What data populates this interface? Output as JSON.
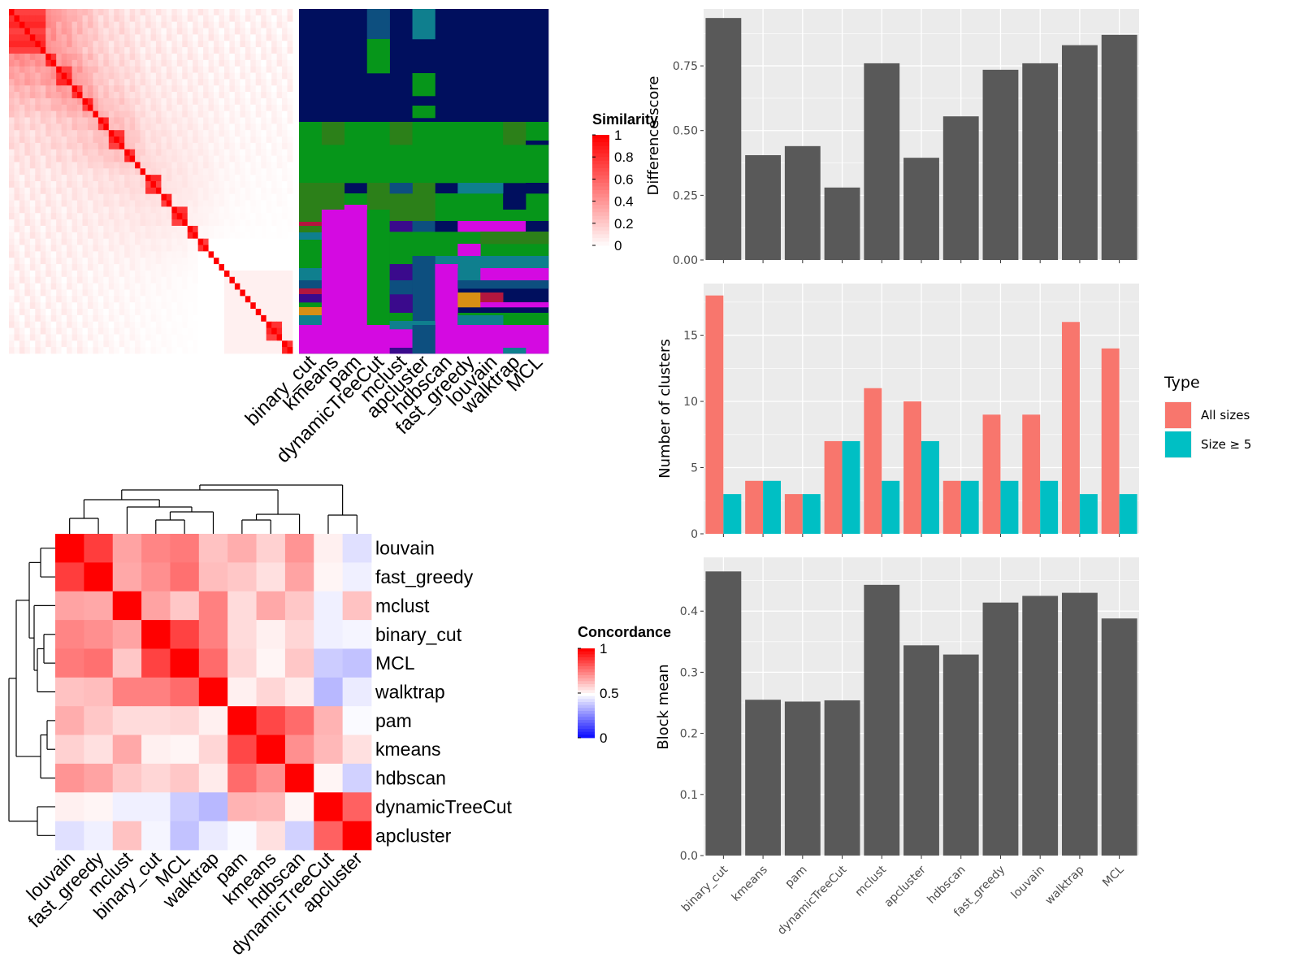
{
  "chart_data": [
    {
      "type": "heatmap",
      "id": "similarity",
      "legend_title": "Similarity",
      "legend_ticks": [
        "1",
        "0.8",
        "0.6",
        "0.4",
        "0.2",
        "0"
      ],
      "colors": {
        "low": "#ffffff",
        "high": "#ff0000"
      },
      "diagonal_blocks": [
        7,
        2,
        3,
        2,
        2,
        1,
        2,
        3,
        2,
        1,
        1,
        3,
        2,
        3,
        2,
        2,
        1,
        1,
        1,
        1,
        1,
        1,
        1,
        1,
        1,
        1,
        1,
        3,
        2
      ]
    },
    {
      "type": "heatmap",
      "id": "cluster-assignment",
      "x_labels": [
        "binary_cut",
        "kmeans",
        "pam",
        "dynamicTreeCut",
        "mclust",
        "apcluster",
        "hdbscan",
        "fast_greedy",
        "louvain",
        "walktrap",
        "MCL"
      ],
      "colors": {
        "navy": "#000f5e",
        "green": "#06961a",
        "darkgreen": "#2c8019",
        "magenta": "#d40ae1",
        "teal": "#0f7f8e",
        "blue": "#0d4f7f",
        "indigo": "#3a0a8c",
        "orange": "#d88f14",
        "crimson": "#b2163e",
        "cyan": "#14948e"
      }
    },
    {
      "type": "heatmap",
      "id": "concordance",
      "legend_title": "Concordance",
      "legend_ticks": [
        "1",
        "0.5",
        "0"
      ],
      "labels": [
        "louvain",
        "fast_greedy",
        "mclust",
        "binary_cut",
        "MCL",
        "walktrap",
        "pam",
        "kmeans",
        "hdbscan",
        "dynamicTreeCut",
        "apcluster"
      ],
      "values": [
        [
          1.0,
          0.88,
          0.68,
          0.74,
          0.76,
          0.62,
          0.66,
          0.59,
          0.71,
          0.53,
          0.44
        ],
        [
          0.88,
          1.0,
          0.67,
          0.72,
          0.78,
          0.63,
          0.61,
          0.56,
          0.68,
          0.52,
          0.47
        ],
        [
          0.68,
          0.67,
          1.0,
          0.68,
          0.61,
          0.75,
          0.57,
          0.67,
          0.61,
          0.47,
          0.62
        ],
        [
          0.74,
          0.72,
          0.68,
          1.0,
          0.87,
          0.75,
          0.57,
          0.53,
          0.58,
          0.47,
          0.48
        ],
        [
          0.76,
          0.78,
          0.61,
          0.87,
          1.0,
          0.79,
          0.58,
          0.52,
          0.61,
          0.4,
          0.38
        ],
        [
          0.62,
          0.63,
          0.75,
          0.75,
          0.79,
          1.0,
          0.53,
          0.58,
          0.54,
          0.36,
          0.46
        ],
        [
          0.66,
          0.61,
          0.57,
          0.57,
          0.58,
          0.53,
          1.0,
          0.86,
          0.79,
          0.65,
          0.49
        ],
        [
          0.59,
          0.56,
          0.67,
          0.53,
          0.52,
          0.58,
          0.86,
          1.0,
          0.72,
          0.64,
          0.56
        ],
        [
          0.71,
          0.68,
          0.61,
          0.58,
          0.61,
          0.54,
          0.79,
          0.72,
          1.0,
          0.52,
          0.41
        ],
        [
          0.53,
          0.52,
          0.47,
          0.47,
          0.4,
          0.36,
          0.65,
          0.64,
          0.52,
          1.0,
          0.81
        ],
        [
          0.44,
          0.47,
          0.62,
          0.48,
          0.38,
          0.46,
          0.49,
          0.56,
          0.41,
          0.81,
          1.0
        ]
      ]
    },
    {
      "type": "bar",
      "id": "difference-score",
      "categories": [
        "binary_cut",
        "kmeans",
        "pam",
        "dynamicTreeCut",
        "mclust",
        "apcluster",
        "hdbscan",
        "fast_greedy",
        "louvain",
        "walktrap",
        "MCL"
      ],
      "values": [
        0.935,
        0.405,
        0.44,
        0.28,
        0.76,
        0.395,
        0.555,
        0.735,
        0.76,
        0.83,
        0.87
      ],
      "ylabel": "Difference score",
      "ylim": [
        0,
        0.97
      ],
      "yticks": [
        "0.00",
        "0.25",
        "0.50",
        "0.75"
      ],
      "grid": true,
      "color": "#595959"
    },
    {
      "type": "bar",
      "id": "number-of-clusters",
      "categories": [
        "binary_cut",
        "kmeans",
        "pam",
        "dynamicTreeCut",
        "mclust",
        "apcluster",
        "hdbscan",
        "fast_greedy",
        "louvain",
        "walktrap",
        "MCL"
      ],
      "series": [
        {
          "name": "All sizes",
          "values": [
            18,
            4,
            3,
            7,
            11,
            10,
            4,
            9,
            9,
            16,
            14
          ],
          "color": "#f8766d"
        },
        {
          "name": "Size ≥ 5",
          "values": [
            3,
            4,
            3,
            7,
            4,
            7,
            4,
            4,
            4,
            3,
            3
          ],
          "color": "#00bfc4"
        }
      ],
      "ylabel": "Number of clusters",
      "ylim": [
        0,
        18.9
      ],
      "yticks": [
        "0",
        "5",
        "10",
        "15"
      ],
      "legend_title": "Type",
      "legend_position": "right",
      "grid": true
    },
    {
      "type": "bar",
      "id": "block-mean",
      "categories": [
        "binary_cut",
        "kmeans",
        "pam",
        "dynamicTreeCut",
        "mclust",
        "apcluster",
        "hdbscan",
        "fast_greedy",
        "louvain",
        "walktrap",
        "MCL"
      ],
      "values": [
        0.465,
        0.255,
        0.252,
        0.254,
        0.443,
        0.344,
        0.329,
        0.414,
        0.425,
        0.43,
        0.388
      ],
      "ylabel": "Block mean",
      "ylim": [
        0,
        0.488
      ],
      "yticks": [
        "0.0",
        "0.1",
        "0.2",
        "0.3",
        "0.4"
      ],
      "grid": true,
      "color": "#595959"
    }
  ]
}
